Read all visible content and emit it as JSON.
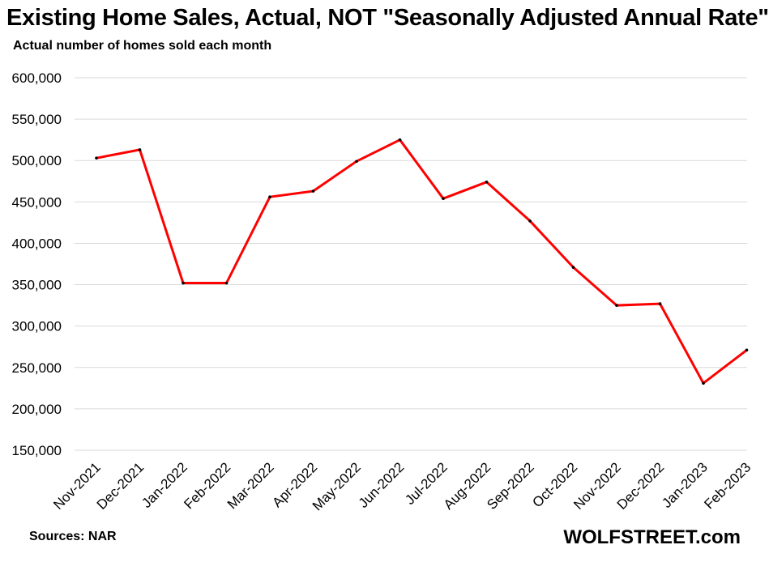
{
  "title": "Existing Home Sales, Actual, NOT \"Seasonally Adjusted Annual Rate\"",
  "subtitle": "Actual number of homes sold each month",
  "source": "Sources: NAR",
  "brand": "WOLFSTREET.com",
  "chart_data": {
    "type": "line",
    "title": "Existing Home Sales, Actual, NOT \"Seasonally Adjusted Annual Rate\"",
    "subtitle": "Actual number of homes sold each month",
    "xlabel": "",
    "ylabel": "",
    "categories": [
      "Nov-2021",
      "Dec-2021",
      "Jan-2022",
      "Feb-2022",
      "Mar-2022",
      "Apr-2022",
      "May-2022",
      "Jun-2022",
      "Jul-2022",
      "Aug-2022",
      "Sep-2022",
      "Oct-2022",
      "Nov-2022",
      "Dec-2022",
      "Jan-2023",
      "Feb-2023"
    ],
    "series": [
      {
        "values": [
          503000,
          513000,
          352000,
          352000,
          456000,
          463000,
          499000,
          525000,
          454000,
          474000,
          427000,
          371000,
          325000,
          327000,
          231000,
          271000
        ]
      }
    ],
    "ylim": [
      150000,
      600000
    ],
    "yticks": [
      150000,
      200000,
      250000,
      300000,
      350000,
      400000,
      450000,
      500000,
      550000,
      600000
    ],
    "ytick_labels": [
      "150,000",
      "200,000",
      "250,000",
      "300,000",
      "350,000",
      "400,000",
      "450,000",
      "500,000",
      "550,000",
      "600,000"
    ],
    "grid": true,
    "legend": "none",
    "line_color": "#ff0000",
    "marker_color": "#000000",
    "grid_color": "#d9d9d9"
  }
}
